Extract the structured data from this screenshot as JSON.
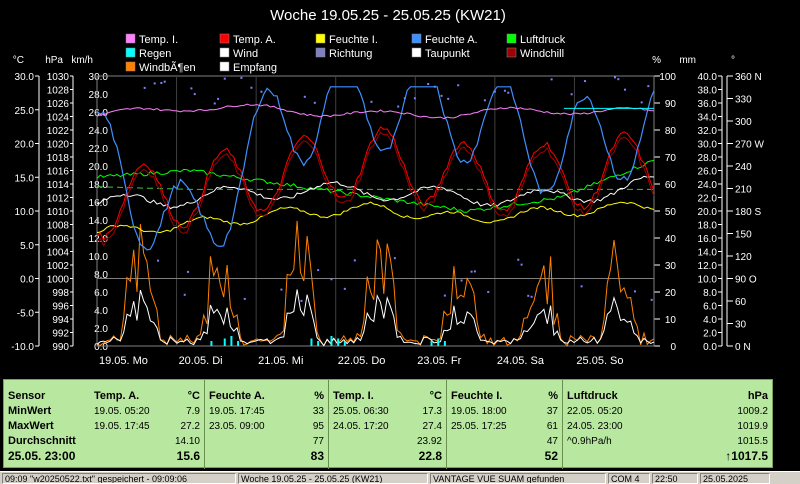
{
  "title": "Woche 19.05.25 - 25.05.25 (KW21)",
  "legend": [
    {
      "name": "Temp. I.",
      "color": "#ff80ff"
    },
    {
      "name": "Temp. A.",
      "color": "#ff0000"
    },
    {
      "name": "Feuchte I.",
      "color": "#ffff00"
    },
    {
      "name": "Feuchte A.",
      "color": "#3f8fff"
    },
    {
      "name": "Luftdruck",
      "color": "#00ff00"
    },
    {
      "name": "Regen",
      "color": "#00ffff"
    },
    {
      "name": "Wind",
      "color": "#ffffff"
    },
    {
      "name": "Richtung",
      "color": "#8080c0"
    },
    {
      "name": "Taupunkt",
      "color": "#ffffff"
    },
    {
      "name": "Windchill",
      "color": "#a00000"
    },
    {
      "name": "WindbÃ¶en",
      "color": "#ff8000"
    },
    {
      "name": "Empfang",
      "color": "#ffffff"
    }
  ],
  "axis_units": {
    "temp": "°C",
    "pressure": "hPa",
    "wind": "km/h",
    "humidity": "%",
    "rain": "mm",
    "direction": "°"
  },
  "axis_ticks": {
    "temp": [
      "30.0",
      "25.0",
      "20.0",
      "15.0",
      "10.0",
      "5.0",
      "0.0",
      "-5.0",
      "-10.0"
    ],
    "pressure": [
      "1030",
      "1028",
      "1026",
      "1024",
      "1022",
      "1020",
      "1018",
      "1016",
      "1014",
      "1012",
      "1010",
      "1008",
      "1006",
      "1004",
      "1002",
      "1000",
      "998",
      "996",
      "994",
      "992",
      "990"
    ],
    "wind": [
      "30.0",
      "28.0",
      "26.0",
      "24.0",
      "22.0",
      "20.0",
      "18.0",
      "16.0",
      "14.0",
      "12.0",
      "10.0",
      "8.0",
      "6.0",
      "4.0",
      "2.0",
      "0.0"
    ],
    "humidity": [
      "100",
      "90",
      "80",
      "70",
      "60",
      "50",
      "40",
      "30",
      "20",
      "10",
      "0"
    ],
    "rain": [
      "40.0",
      "38.0",
      "36.0",
      "34.0",
      "32.0",
      "30.0",
      "28.0",
      "26.0",
      "24.0",
      "22.0",
      "20.0",
      "18.0",
      "16.0",
      "14.0",
      "12.0",
      "10.0",
      "8.0",
      "6.0",
      "4.0",
      "2.0",
      "0.0"
    ],
    "direction": [
      "360 N",
      "330",
      "300",
      "270 W",
      "240",
      "210",
      "180 S",
      "150",
      "120",
      "90  O",
      "60",
      "30",
      "0   N"
    ]
  },
  "x_labels": [
    "19.05. Mo",
    "20.05. Di",
    "21.05. Mi",
    "22.05. Do",
    "23.05. Fr",
    "24.05. Sa",
    "25.05. So"
  ],
  "chart_data": {
    "type": "line",
    "title": "Woche 19.05.25 - 25.05.25 (KW21)",
    "x": [
      "19.05.",
      "20.05.",
      "21.05.",
      "22.05.",
      "23.05.",
      "24.05.",
      "25.05."
    ],
    "ylim_temp": [
      -10,
      30
    ],
    "ylim_pressure": [
      990,
      1030
    ],
    "ylim_wind": [
      0,
      30
    ],
    "ylim_humidity": [
      0,
      100
    ],
    "grid": true,
    "legend_position": "top",
    "series": [
      {
        "name": "Temp. I.",
        "values": [
          24.0,
          25.5,
          25.0,
          24.2,
          24.5,
          25.0,
          24.5
        ]
      },
      {
        "name": "Temp. A.",
        "values": [
          11.0,
          13.0,
          15.5,
          17.5,
          15.0,
          15.0,
          17.0
        ]
      },
      {
        "name": "Feuchte I.",
        "values": [
          42,
          45,
          49,
          51,
          47,
          50,
          52
        ]
      },
      {
        "name": "Feuchte A.",
        "values": [
          70,
          40,
          85,
          90,
          86,
          72,
          83
        ]
      },
      {
        "name": "Luftdruck",
        "values": [
          1015,
          1016,
          1014,
          1012,
          1010,
          1012,
          1017.5
        ]
      },
      {
        "name": "Taupunkt",
        "values": [
          11,
          12,
          13,
          13,
          12,
          12,
          14
        ]
      },
      {
        "name": "Empfang",
        "values": [
          59,
          58,
          58,
          58,
          58,
          58,
          58
        ]
      }
    ]
  },
  "stats": {
    "row_labels": [
      "Sensor",
      "MinWert",
      "MaxWert",
      "Durchschnitt",
      "25.05. 23:00"
    ],
    "sections": [
      {
        "name": "Temp. A.",
        "unit": "°C",
        "min_time": "19.05. 05:20",
        "min": "7.9",
        "max_time": "19.05. 17:45",
        "max": "27.2",
        "avg": "14.10",
        "last": "15.6"
      },
      {
        "name": "Feuchte A.",
        "unit": "%",
        "min_time": "19.05. 17:45",
        "min": "33",
        "max_time": "23.05. 09:00",
        "max": "95",
        "avg": "77",
        "last": "83"
      },
      {
        "name": "Temp. I.",
        "unit": "°C",
        "min_time": "25.05. 06:30",
        "min": "17.3",
        "max_time": "24.05. 17:20",
        "max": "27.4",
        "avg": "23.92",
        "last": "22.8"
      },
      {
        "name": "Feuchte I.",
        "unit": "%",
        "min_time": "19.05. 18:00",
        "min": "37",
        "max_time": "25.05. 17:25",
        "max": "61",
        "avg": "47",
        "last": "52"
      },
      {
        "name": "Luftdruck",
        "unit": "hPa",
        "min_time": "22.05. 05:20",
        "min": "1009.2",
        "max_time": "24.05. 23:00",
        "max": "1019.9",
        "avg_extra": "^0.9hPa/h",
        "avg": "1015.5",
        "last": "↑1017.5"
      }
    ]
  },
  "statusbar": [
    "09:09 \"w20250522.txt\" gespeichert - 09:09:06",
    "Woche 19.05.25 - 25.05.25 (KW21)",
    "VANTAGE VUE SUAM gefunden",
    "COM 4",
    "22:50",
    "25.05.2025"
  ]
}
